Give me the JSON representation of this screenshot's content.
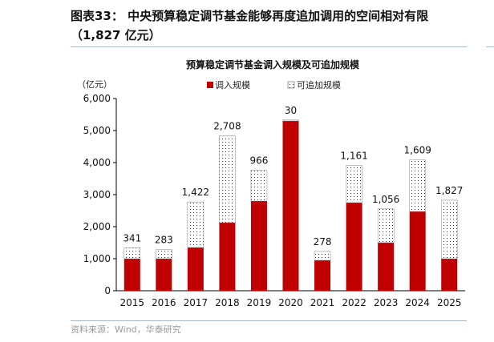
{
  "header": {
    "line1": "图表33：  中央预算稳定调节基金能够再度追加调用的空间相对有限",
    "line2": "（1,827 亿元）"
  },
  "source": "资料来源：Wind，华泰研究",
  "chart_data": {
    "type": "bar",
    "stacked": true,
    "title": "预算稳定调节基金调入规模及可追加规模",
    "ylabel": "（亿元）",
    "xlabel": "",
    "ylim": [
      0,
      6000
    ],
    "yticks": [
      0,
      1000,
      2000,
      3000,
      4000,
      5000,
      6000
    ],
    "ytick_labels": [
      "0",
      "1,000",
      "2,000",
      "3,000",
      "4,000",
      "5,000",
      "6,000"
    ],
    "categories": [
      "2015",
      "2016",
      "2017",
      "2018",
      "2019",
      "2020",
      "2021",
      "2022",
      "2023",
      "2024",
      "2025"
    ],
    "legend_position": "top-center",
    "series": [
      {
        "name": "调入规模",
        "color": "#c00000",
        "values": [
          1000,
          1000,
          1350,
          2125,
          2800,
          5300,
          950,
          2750,
          1500,
          2475,
          1000
        ]
      },
      {
        "name": "可追加规模",
        "color": "#ffffff",
        "pattern": "dots",
        "values": [
          341,
          283,
          1422,
          2708,
          966,
          30,
          278,
          1161,
          1056,
          1609,
          1827
        ],
        "data_labels": [
          "341",
          "283",
          "1,422",
          "2,708",
          "966",
          "30",
          "278",
          "1,161",
          "1,056",
          "1,609",
          "1,827"
        ]
      }
    ]
  }
}
